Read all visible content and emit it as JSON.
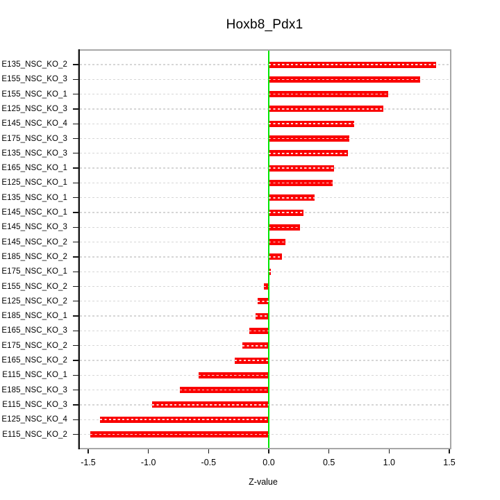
{
  "window": {
    "background": "#ffffff"
  },
  "chart_data": {
    "type": "bar",
    "orientation": "horizontal",
    "title": "Hoxb8_Pdx1",
    "xlabel": "Z-value",
    "categories": [
      "E135_NSC_KO_2",
      "E155_NSC_KO_3",
      "E155_NSC_KO_1",
      "E125_NSC_KO_3",
      "E145_NSC_KO_4",
      "E175_NSC_KO_3",
      "E135_NSC_KO_3",
      "E165_NSC_KO_1",
      "E125_NSC_KO_1",
      "E135_NSC_KO_1",
      "E145_NSC_KO_1",
      "E145_NSC_KO_3",
      "E145_NSC_KO_2",
      "E185_NSC_KO_2",
      "E175_NSC_KO_1",
      "E155_NSC_KO_2",
      "E125_NSC_KO_2",
      "E185_NSC_KO_1",
      "E165_NSC_KO_3",
      "E175_NSC_KO_2",
      "E165_NSC_KO_2",
      "E115_NSC_KO_1",
      "E185_NSC_KO_3",
      "E115_NSC_KO_3",
      "E125_NSC_KO_4",
      "E115_NSC_KO_2"
    ],
    "values": [
      1.39,
      1.26,
      0.99,
      0.95,
      0.71,
      0.67,
      0.66,
      0.54,
      0.53,
      0.38,
      0.29,
      0.26,
      0.14,
      0.11,
      0.02,
      -0.04,
      -0.09,
      -0.11,
      -0.16,
      -0.22,
      -0.28,
      -0.58,
      -0.74,
      -0.97,
      -1.4,
      -1.48
    ],
    "x_tick_values": [
      -1.5,
      -1.0,
      -0.5,
      0.0,
      0.5,
      1.0,
      1.5
    ],
    "x_tick_labels": [
      "-1.5",
      "-1.0",
      "-0.5",
      "0.0",
      "0.5",
      "1.0",
      "1.5"
    ],
    "xlim": [
      -1.59,
      1.51
    ],
    "grid": true,
    "legend": false,
    "bar_color": "#fa0000",
    "zero_line_color": "#00e600",
    "grid_color": "#d6d6d6",
    "box_color": "#a7a7a7",
    "axis_color": "#161616"
  }
}
